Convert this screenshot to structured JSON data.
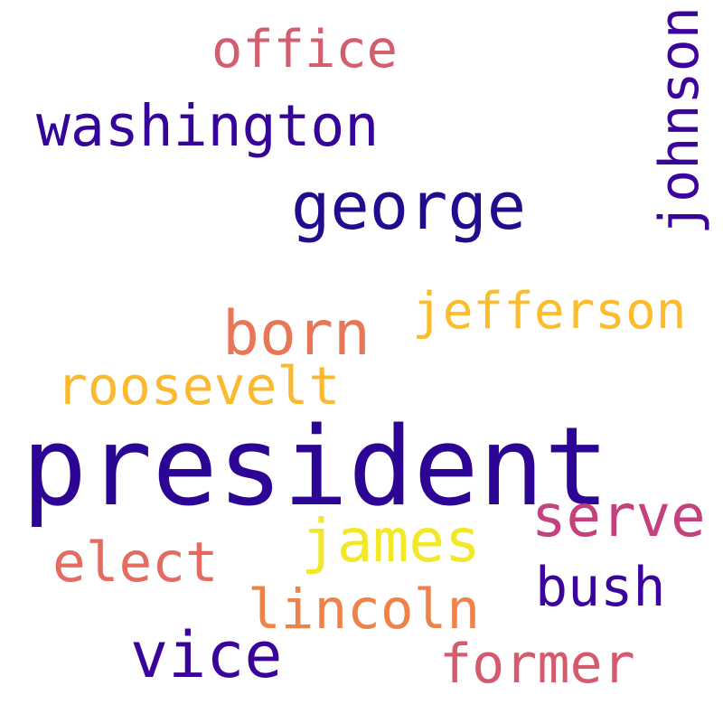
{
  "words": {
    "president": {
      "text": "president",
      "color": "#2c0594"
    },
    "george": {
      "text": "george",
      "color": "#1f0c8f"
    },
    "washington": {
      "text": "washington",
      "color": "#350498"
    },
    "office": {
      "text": "office",
      "color": "#d35e6f"
    },
    "johnson": {
      "text": "johnson",
      "color": "#3b049a"
    },
    "jefferson": {
      "text": "jefferson",
      "color": "#fbbd2c"
    },
    "born": {
      "text": "born",
      "color": "#e8775a"
    },
    "roosevelt": {
      "text": "roosevelt",
      "color": "#fbb931"
    },
    "serve": {
      "text": "serve",
      "color": "#c5417e"
    },
    "james": {
      "text": "james",
      "color": "#f2e829"
    },
    "elect": {
      "text": "elect",
      "color": "#e56a5f"
    },
    "bush": {
      "text": "bush",
      "color": "#3a049a"
    },
    "lincoln": {
      "text": "lincoln",
      "color": "#ef8249"
    },
    "vice": {
      "text": "vice",
      "color": "#3a049a"
    },
    "former": {
      "text": "former",
      "color": "#d65a6e"
    }
  }
}
